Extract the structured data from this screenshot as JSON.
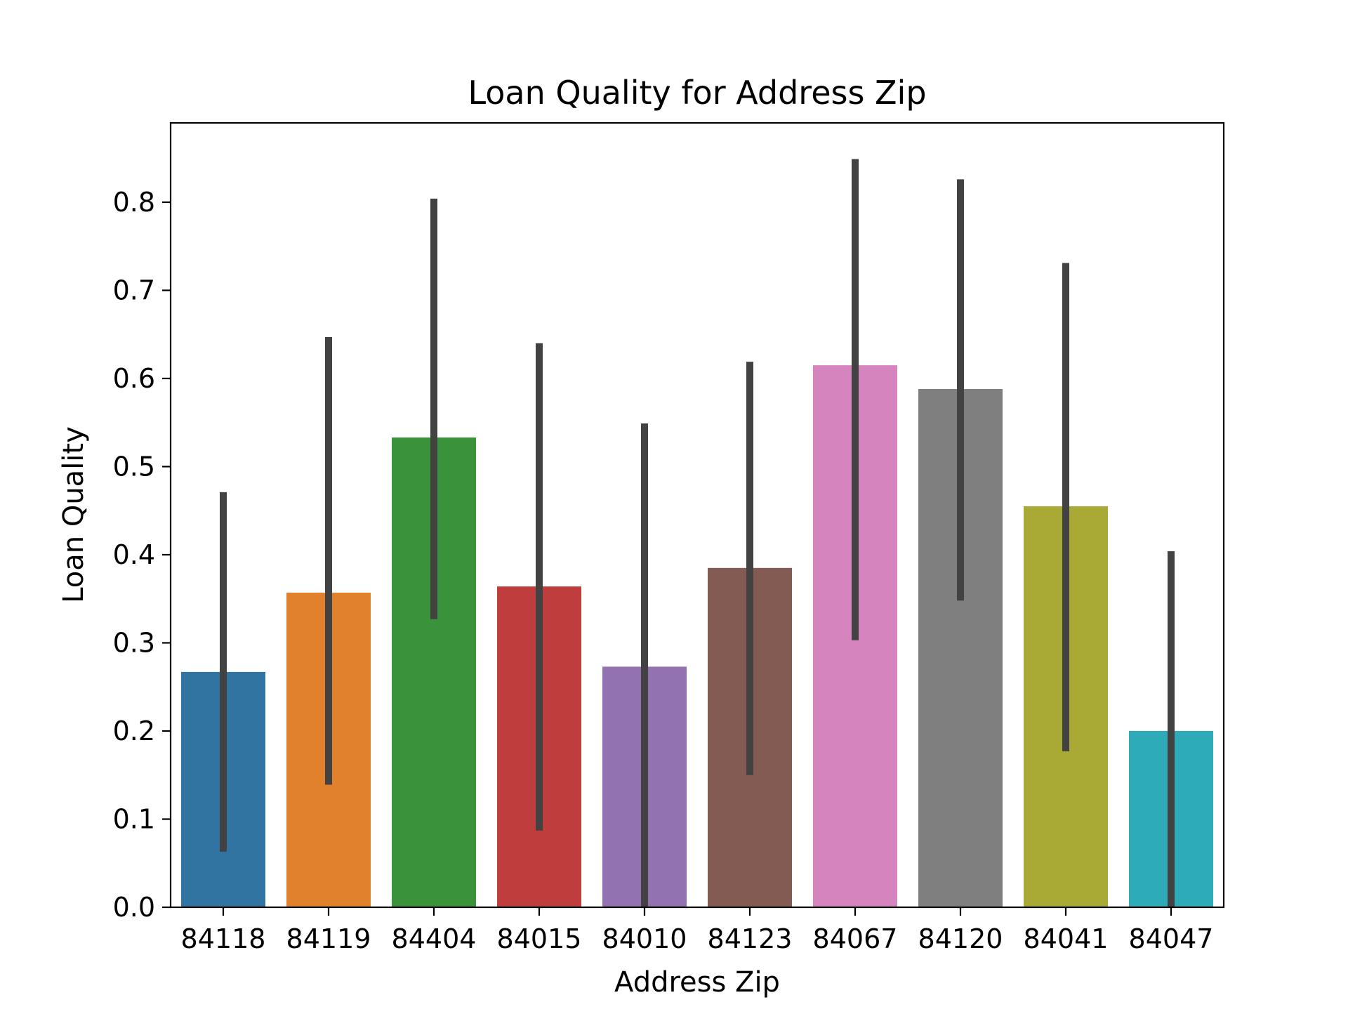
{
  "chart_data": {
    "type": "bar",
    "title": "Loan Quality for Address Zip",
    "xlabel": "Address Zip",
    "ylabel": "Loan Quality",
    "categories": [
      "84118",
      "84119",
      "84404",
      "84015",
      "84010",
      "84123",
      "84067",
      "84120",
      "84041",
      "84047"
    ],
    "values": [
      0.267,
      0.357,
      0.533,
      0.364,
      0.273,
      0.385,
      0.615,
      0.588,
      0.455,
      0.2
    ],
    "error_bars": [
      [
        0.063,
        0.471
      ],
      [
        0.139,
        0.647
      ],
      [
        0.327,
        0.804
      ],
      [
        0.087,
        0.64
      ],
      [
        0.0,
        0.549
      ],
      [
        0.15,
        0.619
      ],
      [
        0.303,
        0.849
      ],
      [
        0.348,
        0.826
      ],
      [
        0.177,
        0.731
      ],
      [
        0.0,
        0.404
      ]
    ],
    "colors": [
      "#3274a1",
      "#e1812c",
      "#3a923a",
      "#c03d3e",
      "#9372b2",
      "#845b53",
      "#d684bd",
      "#7f7f7f",
      "#a9aa35",
      "#2eabb8"
    ],
    "error_color": "#424242",
    "ylim": [
      0,
      0.89
    ],
    "yticks": [
      0.0,
      0.1,
      0.2,
      0.3,
      0.4,
      0.5,
      0.6,
      0.7,
      0.8
    ],
    "ytick_labels": [
      "0.0",
      "0.1",
      "0.2",
      "0.3",
      "0.4",
      "0.5",
      "0.6",
      "0.7",
      "0.8"
    ],
    "grid": false,
    "legend": "none"
  }
}
